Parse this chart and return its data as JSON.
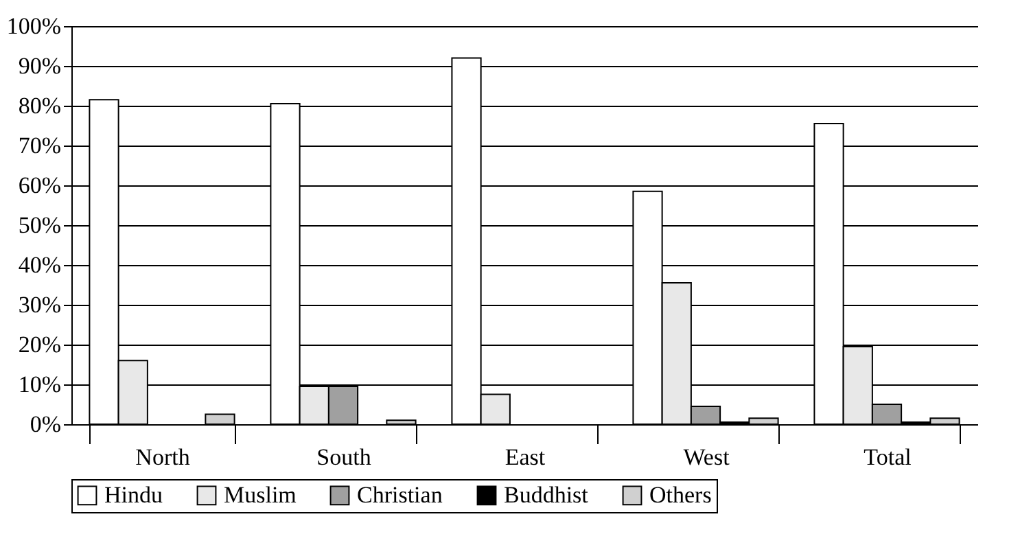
{
  "chart_data": {
    "type": "bar",
    "categories": [
      "North",
      "South",
      "East",
      "West",
      "Total"
    ],
    "series": [
      {
        "name": "Hindu",
        "color": "#ffffff",
        "values": [
          81.5,
          80.5,
          92,
          58.5,
          75.5
        ]
      },
      {
        "name": "Muslim",
        "color": "#e8e8e8",
        "values": [
          16,
          9.5,
          7.5,
          35.5,
          19.5
        ]
      },
      {
        "name": "Christian",
        "color": "#a0a0a0",
        "values": [
          0,
          9.5,
          0,
          4.5,
          5
        ]
      },
      {
        "name": "Buddhist",
        "color": "#000000",
        "values": [
          0,
          0,
          0,
          0.5,
          0.5
        ]
      },
      {
        "name": "Others",
        "color": "#d0d0d0",
        "values": [
          2.5,
          1,
          0,
          1.5,
          1.5
        ]
      }
    ],
    "ylim": [
      0,
      100
    ],
    "yticks": [
      {
        "value": 0,
        "label": "0%"
      },
      {
        "value": 10,
        "label": "10%"
      },
      {
        "value": 20,
        "label": "20%"
      },
      {
        "value": 30,
        "label": "30%"
      },
      {
        "value": 40,
        "label": "40%"
      },
      {
        "value": 50,
        "label": "50%"
      },
      {
        "value": 60,
        "label": "60%"
      },
      {
        "value": 70,
        "label": "70%"
      },
      {
        "value": 80,
        "label": "80%"
      },
      {
        "value": 90,
        "label": "90%"
      },
      {
        "value": 100,
        "label": "100%"
      }
    ],
    "grid": "y",
    "legend": "bottom"
  }
}
